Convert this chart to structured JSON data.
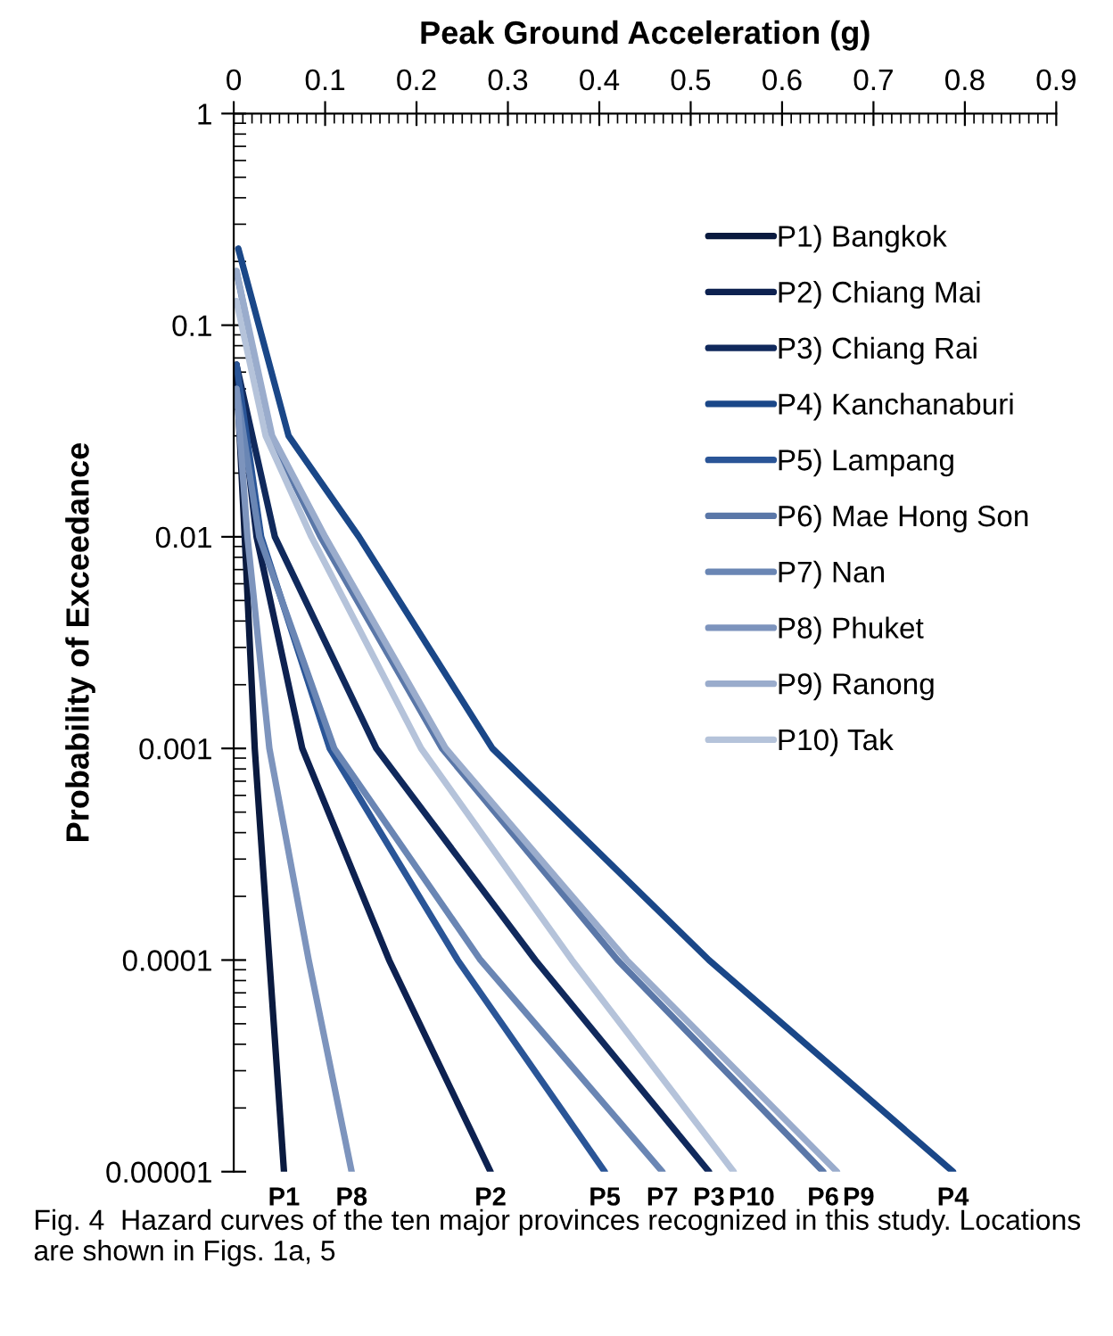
{
  "chart_data": {
    "type": "line",
    "xlabel": "Peak Ground Acceleration (g)",
    "ylabel": "Probability of Exceedance",
    "log": "y",
    "xlim": [
      0,
      0.9
    ],
    "ylim": [
      1e-05,
      1
    ],
    "xticks": [
      0,
      0.1,
      0.2,
      0.3,
      0.4,
      0.5,
      0.6,
      0.7,
      0.8,
      0.9
    ],
    "yticks": [
      1,
      0.1,
      0.01,
      0.001,
      0.0001,
      {
        "value": 1e-05,
        "label": "0.00001"
      }
    ],
    "grid": false,
    "legend": "top right",
    "marker": "none",
    "line_style": "solid",
    "series": [
      {
        "name": "P1) Bangkok",
        "color": "#0a1a3f",
        "x": [
          0.003,
          0.012,
          0.023,
          0.039,
          0.055
        ],
        "values": [
          0.06,
          0.01,
          0.001,
          0.0001,
          1e-05
        ]
      },
      {
        "name": "P2) Chiang Mai",
        "color": "#0d2150",
        "x": [
          0.003,
          0.025,
          0.075,
          0.17,
          0.281
        ],
        "values": [
          0.065,
          0.01,
          0.001,
          0.0001,
          1e-05
        ]
      },
      {
        "name": "P3) Chiang Rai",
        "color": "#10295c",
        "x": [
          0.003,
          0.045,
          0.156,
          0.33,
          0.52
        ],
        "values": [
          0.065,
          0.01,
          0.001,
          0.0001,
          1e-05
        ]
      },
      {
        "name": "P4) Kanchanaburi",
        "color": "#1a4788",
        "x": [
          0.005,
          0.06,
          0.137,
          0.283,
          0.52,
          0.787
        ],
        "values": [
          0.23,
          0.03,
          0.01,
          0.001,
          0.0001,
          1e-05
        ]
      },
      {
        "name": "P5) Lampang",
        "color": "#2a5597",
        "x": [
          0.003,
          0.03,
          0.105,
          0.245,
          0.406
        ],
        "values": [
          0.065,
          0.01,
          0.001,
          0.0001,
          1e-05
        ]
      },
      {
        "name": "P6) Mae Hong Son",
        "color": "#5a77a8",
        "x": [
          0.003,
          0.04,
          0.095,
          0.228,
          0.42,
          0.645
        ],
        "values": [
          0.18,
          0.03,
          0.01,
          0.001,
          0.0001,
          1e-05
        ]
      },
      {
        "name": "P7) Nan",
        "color": "#6a86b4",
        "x": [
          0.003,
          0.028,
          0.11,
          0.27,
          0.469
        ],
        "values": [
          0.05,
          0.01,
          0.001,
          0.0001,
          1e-05
        ]
      },
      {
        "name": "P8) Phuket",
        "color": "#7d94bd",
        "x": [
          0.003,
          0.015,
          0.039,
          0.082,
          0.129
        ],
        "values": [
          0.05,
          0.01,
          0.001,
          0.0001,
          1e-05
        ]
      },
      {
        "name": "P9) Ranong",
        "color": "#9aaccc",
        "x": [
          0.003,
          0.042,
          0.1,
          0.232,
          0.43,
          0.66
        ],
        "values": [
          0.18,
          0.03,
          0.01,
          0.001,
          0.0001,
          1e-05
        ]
      },
      {
        "name": "P10) Tak",
        "color": "#b5c3da",
        "x": [
          0.003,
          0.035,
          0.085,
          0.205,
          0.37,
          0.547
        ],
        "values": [
          0.13,
          0.03,
          0.01,
          0.001,
          0.0001,
          1e-05
        ]
      }
    ],
    "annotations": [
      {
        "text": "P1",
        "x": 0.055,
        "y": 1e-05
      },
      {
        "text": "P8",
        "x": 0.129,
        "y": 1e-05
      },
      {
        "text": "P2",
        "x": 0.281,
        "y": 1e-05
      },
      {
        "text": "P5",
        "x": 0.406,
        "y": 1e-05
      },
      {
        "text": "P7",
        "x": 0.469,
        "y": 1e-05
      },
      {
        "text": "P3",
        "x": 0.52,
        "y": 1e-05
      },
      {
        "text": "P10",
        "x": 0.547,
        "y": 1e-05
      },
      {
        "text": "P6",
        "x": 0.645,
        "y": 1e-05
      },
      {
        "text": "P9",
        "x": 0.66,
        "y": 1e-05
      },
      {
        "text": "P4",
        "x": 0.787,
        "y": 1e-05
      },
      "Fig. 4  Hazard curves of the ten major provinces recognized in this study. Locations are shown in Figs. 1a, 5"
    ]
  }
}
